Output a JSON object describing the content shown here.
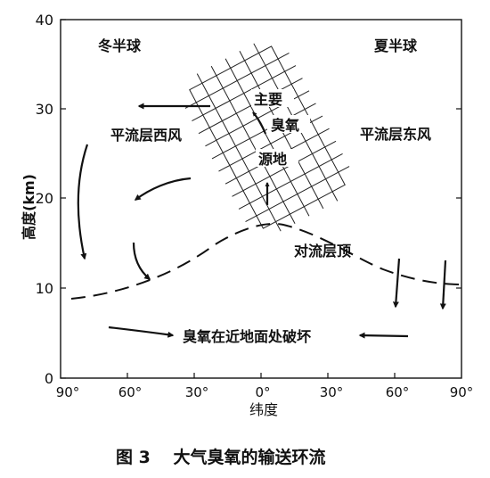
{
  "figure": {
    "caption": "图 3　 大气臭氧的输送环流",
    "xlabel": "纬度",
    "ylabel": "高度(km)",
    "x_ticks": [
      "90°",
      "60°",
      "30°",
      "0°",
      "30°",
      "60°",
      "90°"
    ],
    "y_ticks": [
      "0",
      "10",
      "20",
      "30",
      "40"
    ],
    "labels": {
      "winter": "冬半球",
      "summer": "夏半球",
      "source_1": "主要",
      "source_2": "臭氧",
      "source_3": "源地",
      "west_wind": "平流层西风",
      "east_wind": "平流层东风",
      "tropopause": "对流层顶",
      "destruction": "臭氧在近地面处破坏"
    }
  }
}
